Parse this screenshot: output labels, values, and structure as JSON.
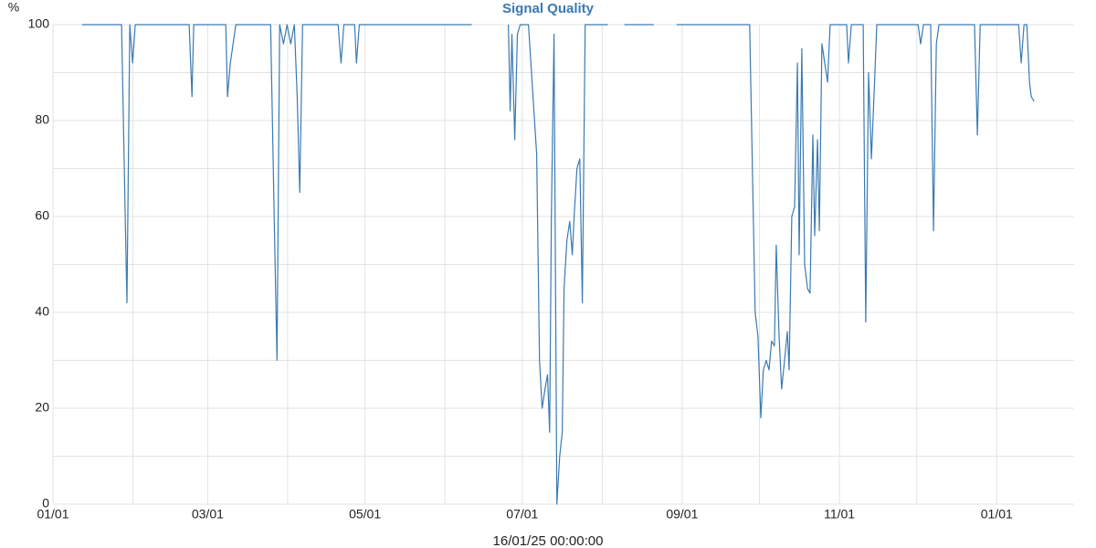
{
  "chart_data": {
    "type": "line",
    "title": "Signal Quality",
    "y_label": "%",
    "x_label": "16/01/25 00:00:00",
    "color": "#3a7ab3",
    "x": [
      11.3,
      26.6,
      28.0,
      28.7,
      29.8,
      30.9,
      31.9,
      52.8,
      53.9,
      54.6,
      67.0,
      67.7,
      68.8,
      70.9,
      84.4,
      85.8,
      86.9,
      87.9,
      89.4,
      90.8,
      92.2,
      93.6,
      94.7,
      95.7,
      96.8,
      110.6,
      111.7,
      112.8,
      117.0,
      117.7,
      118.8,
      162.4,
      null,
      176.6,
      177.3,
      178.0,
      179.1,
      180.1,
      181.2,
      184.4,
      187.6,
      188.7,
      189.7,
      190.8,
      191.8,
      192.6,
      193.3,
      194.3,
      195.4,
      196.5,
      197.5,
      198.2,
      199.3,
      200.4,
      201.4,
      202.1,
      203.2,
      204.3,
      205.3,
      206.4,
      215.2,
      null,
      221.6,
      233.0,
      null,
      241.8,
      270.2,
      272.3,
      273.4,
      274.5,
      275.5,
      276.6,
      277.7,
      278.7,
      279.8,
      280.5,
      281.6,
      282.6,
      283.7,
      284.8,
      285.5,
      286.5,
      287.6,
      288.7,
      289.4,
      290.4,
      291.5,
      292.6,
      293.6,
      294.7,
      295.4,
      296.5,
      297.2,
      298.2,
      299.3,
      300.4,
      301.4,
      307.8,
      308.5,
      309.6,
      314.2,
      315.2,
      316.3,
      317.4,
      318.4,
      319.5,
      335.5,
      336.5,
      337.6,
      340.4,
      341.5,
      342.6,
      343.6,
      357.4,
      358.5,
      359.6,
      374.5,
      375.5,
      376.6,
      377.7,
      378.7,
      379.4,
      380.5
    ],
    "values": [
      100,
      100,
      60,
      42,
      100,
      92,
      100,
      100,
      85,
      100,
      100,
      85,
      92,
      100,
      100,
      60,
      30,
      100,
      96,
      100,
      96,
      100,
      85,
      65,
      100,
      100,
      92,
      100,
      100,
      92,
      100,
      100,
      null,
      100,
      82,
      98,
      76,
      98,
      100,
      100,
      73,
      30,
      20,
      24,
      27,
      15,
      60,
      98,
      0,
      10,
      15,
      45,
      55,
      59,
      52,
      60,
      70,
      72,
      42,
      100,
      100,
      null,
      100,
      100,
      null,
      100,
      100,
      40,
      35,
      18,
      28,
      30,
      28,
      34,
      33,
      54,
      35,
      24,
      30,
      36,
      28,
      60,
      62,
      92,
      52,
      95,
      50,
      45,
      44,
      77,
      56,
      76,
      57,
      96,
      92,
      88,
      100,
      100,
      92,
      100,
      100,
      38,
      90,
      72,
      85,
      100,
      100,
      96,
      100,
      100,
      57,
      96,
      100,
      100,
      77,
      100,
      100,
      92,
      100,
      100,
      88,
      85,
      84
    ],
    "xlim": [
      0,
      396
    ],
    "xticks": [
      {
        "value": 0,
        "label": "01/01"
      },
      {
        "value": 60,
        "label": "03/01"
      },
      {
        "value": 121,
        "label": "05/01"
      },
      {
        "value": 182,
        "label": "07/01"
      },
      {
        "value": 244,
        "label": "09/01"
      },
      {
        "value": 305,
        "label": "11/01"
      },
      {
        "value": 366,
        "label": "01/01"
      }
    ],
    "xminorticks": [
      31,
      91,
      152,
      213,
      274,
      335
    ],
    "ylim": [
      0,
      100
    ],
    "yticks": [
      0,
      20,
      40,
      60,
      80,
      100
    ],
    "yminorticks": [
      10,
      30,
      50,
      70,
      90
    ],
    "grid": true
  }
}
